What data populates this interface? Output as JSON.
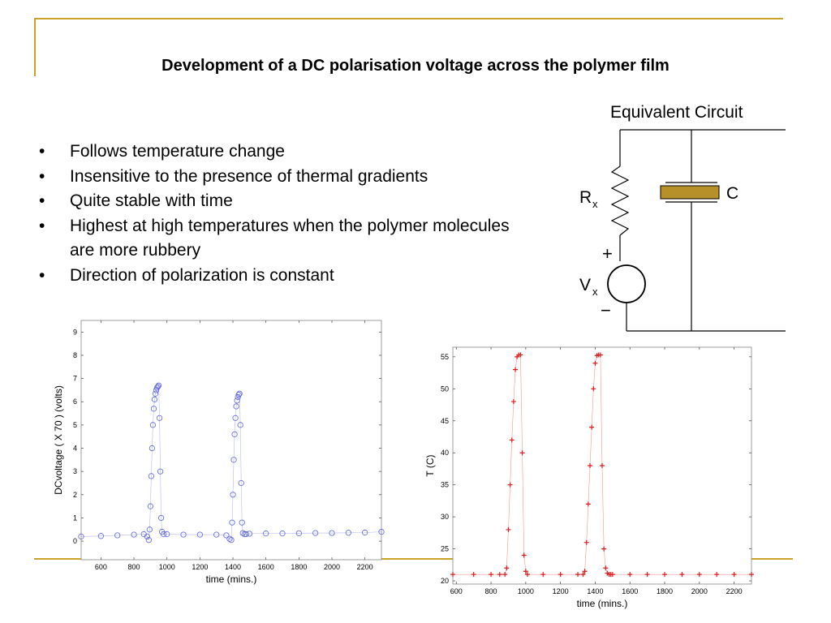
{
  "slide": {
    "title": "Development of a DC polarisation voltage across the polymer film",
    "bullets": [
      "Follows temperature change",
      "Insensitive to the presence of thermal gradients",
      "Quite stable with time",
      "Highest at high temperatures when the polymer molecules are more rubbery",
      "Direction of polarization is constant"
    ],
    "bullet_symbol": "•"
  },
  "circuit": {
    "title": "Equivalent Circuit",
    "resistor_label": "R",
    "resistor_sub": "x",
    "capacitor_label": "C",
    "source_label": "V",
    "source_sub": "x",
    "plus": "+",
    "minus": "−",
    "capacitor_color": "#b8902a"
  },
  "chart_data": [
    {
      "type": "scatter",
      "marker": "circle",
      "color": "#5b63e0",
      "xlabel": "time (mins.)",
      "ylabel": "DCvoltage ( X 70 ) (volts)",
      "xlim": [
        480,
        2300
      ],
      "ylim": [
        -0.8,
        9.5
      ],
      "xticks": [
        600,
        800,
        1000,
        1200,
        1400,
        1600,
        1800,
        2000,
        2200
      ],
      "yticks": [
        0,
        1,
        2,
        3,
        4,
        5,
        6,
        7,
        8,
        9
      ],
      "series": [
        {
          "x": [
            480,
            600,
            700,
            800,
            860,
            880,
            890,
            895,
            900,
            905,
            910,
            915,
            920,
            925,
            930,
            935,
            940,
            945,
            950,
            955,
            960,
            965,
            970,
            980,
            1000,
            1100,
            1200,
            1300,
            1360,
            1380,
            1390,
            1395,
            1400,
            1405,
            1410,
            1415,
            1420,
            1425,
            1430,
            1435,
            1440,
            1445,
            1450,
            1455,
            1460,
            1470,
            1480,
            1500,
            1600,
            1700,
            1800,
            1900,
            2000,
            2100,
            2200,
            2300
          ],
          "y": [
            0.2,
            0.22,
            0.25,
            0.28,
            0.3,
            0.2,
            0.05,
            0.5,
            1.5,
            2.8,
            4.0,
            5.0,
            5.7,
            6.1,
            6.35,
            6.5,
            6.6,
            6.65,
            6.7,
            5.3,
            3.0,
            1.0,
            0.4,
            0.3,
            0.3,
            0.28,
            0.28,
            0.28,
            0.25,
            0.1,
            0.05,
            0.8,
            2.0,
            3.5,
            4.6,
            5.3,
            5.8,
            6.05,
            6.2,
            6.3,
            6.35,
            5.0,
            2.5,
            0.8,
            0.35,
            0.3,
            0.3,
            0.32,
            0.33,
            0.33,
            0.34,
            0.35,
            0.35,
            0.36,
            0.37,
            0.4
          ]
        }
      ]
    },
    {
      "type": "scatter",
      "marker": "plus",
      "color": "#e01818",
      "xlabel": "time (mins.)",
      "ylabel": "T (C)",
      "xlim": [
        580,
        2300
      ],
      "ylim": [
        19.5,
        56.5
      ],
      "xticks": [
        600,
        800,
        1000,
        1200,
        1400,
        1600,
        1800,
        2000,
        2200
      ],
      "yticks": [
        20,
        25,
        30,
        35,
        40,
        45,
        50,
        55
      ],
      "series": [
        {
          "x": [
            580,
            700,
            800,
            850,
            880,
            890,
            900,
            910,
            920,
            930,
            940,
            950,
            960,
            970,
            980,
            990,
            1000,
            1010,
            1100,
            1200,
            1300,
            1330,
            1340,
            1350,
            1360,
            1370,
            1380,
            1390,
            1400,
            1410,
            1420,
            1430,
            1440,
            1450,
            1460,
            1470,
            1480,
            1490,
            1500,
            1600,
            1700,
            1800,
            1900,
            2000,
            2100,
            2200,
            2300
          ],
          "y": [
            21,
            21,
            21,
            21,
            21,
            22,
            28,
            35,
            42,
            48,
            53,
            55,
            55.3,
            55.3,
            40,
            24,
            21.5,
            21,
            21,
            21,
            21,
            21,
            21.5,
            26,
            32,
            38,
            44,
            50,
            54,
            55.2,
            55.3,
            55.3,
            38,
            25,
            22,
            21.2,
            21,
            21,
            21,
            21,
            21,
            21,
            21,
            21,
            21,
            21,
            21
          ]
        }
      ]
    }
  ]
}
